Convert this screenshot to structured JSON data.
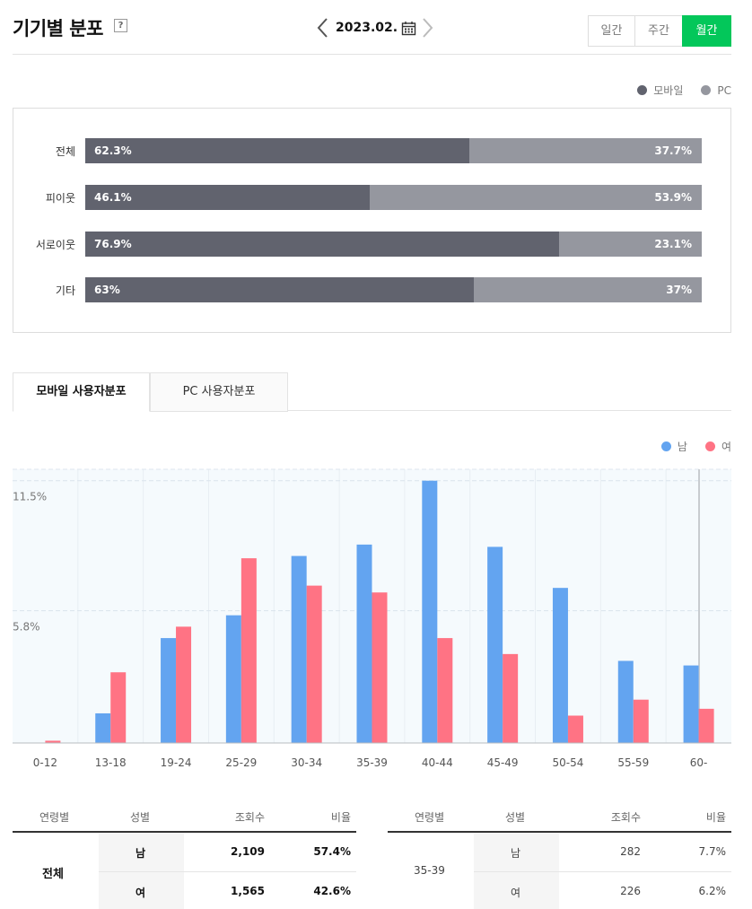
{
  "header": {
    "title": "기기별 분포",
    "help": "?",
    "date": "2023.02.",
    "periods": [
      "일간",
      "주간",
      "월간"
    ],
    "active_period": "월간"
  },
  "device": {
    "legend": [
      {
        "name": "모바일",
        "color": "#61636e"
      },
      {
        "name": "PC",
        "color": "#95979f"
      }
    ],
    "rows": [
      {
        "label": "전체",
        "mobile": 62.3,
        "pc": 37.7,
        "mobile_text": "62.3%",
        "pc_text": "37.7%"
      },
      {
        "label": "피이웃",
        "mobile": 46.1,
        "pc": 53.9,
        "mobile_text": "46.1%",
        "pc_text": "53.9%"
      },
      {
        "label": "서로이웃",
        "mobile": 76.9,
        "pc": 23.1,
        "mobile_text": "76.9%",
        "pc_text": "23.1%"
      },
      {
        "label": "기타",
        "mobile": 63,
        "pc": 37,
        "mobile_text": "63%",
        "pc_text": "37%"
      }
    ]
  },
  "tabs": [
    "모바일 사용자분포",
    "PC 사용자분포"
  ],
  "chart_data": {
    "type": "bar",
    "categories": [
      "0-12",
      "13-18",
      "19-24",
      "25-29",
      "30-34",
      "35-39",
      "40-44",
      "45-49",
      "50-54",
      "55-59",
      "60-"
    ],
    "series": [
      {
        "name": "남",
        "color": "#63a4f0",
        "values": [
          0,
          1.3,
          4.6,
          5.6,
          8.2,
          8.7,
          11.5,
          8.6,
          6.8,
          3.6,
          3.4
        ]
      },
      {
        "name": "여",
        "color": "#ff7384",
        "values": [
          0.1,
          3.1,
          5.1,
          8.1,
          6.9,
          6.6,
          4.6,
          3.9,
          1.2,
          1.9,
          1.5
        ]
      }
    ],
    "yticks": [
      "11.5%",
      "5.8%"
    ],
    "ylim": [
      0,
      12
    ],
    "ytick_values": [
      11.5,
      5.8
    ],
    "legend_position": "top-right"
  },
  "table_left": {
    "headers": [
      "연령별",
      "성별",
      "조회수",
      "비율"
    ],
    "group": "전체",
    "rows": [
      {
        "gender": "남",
        "views": "2,109",
        "ratio": "57.4%"
      },
      {
        "gender": "여",
        "views": "1,565",
        "ratio": "42.6%"
      }
    ]
  },
  "table_right": {
    "headers": [
      "연령별",
      "성별",
      "조회수",
      "비율"
    ],
    "group": "35-39",
    "rows": [
      {
        "gender": "남",
        "views": "282",
        "ratio": "7.7%"
      },
      {
        "gender": "여",
        "views": "226",
        "ratio": "6.2%"
      }
    ]
  }
}
